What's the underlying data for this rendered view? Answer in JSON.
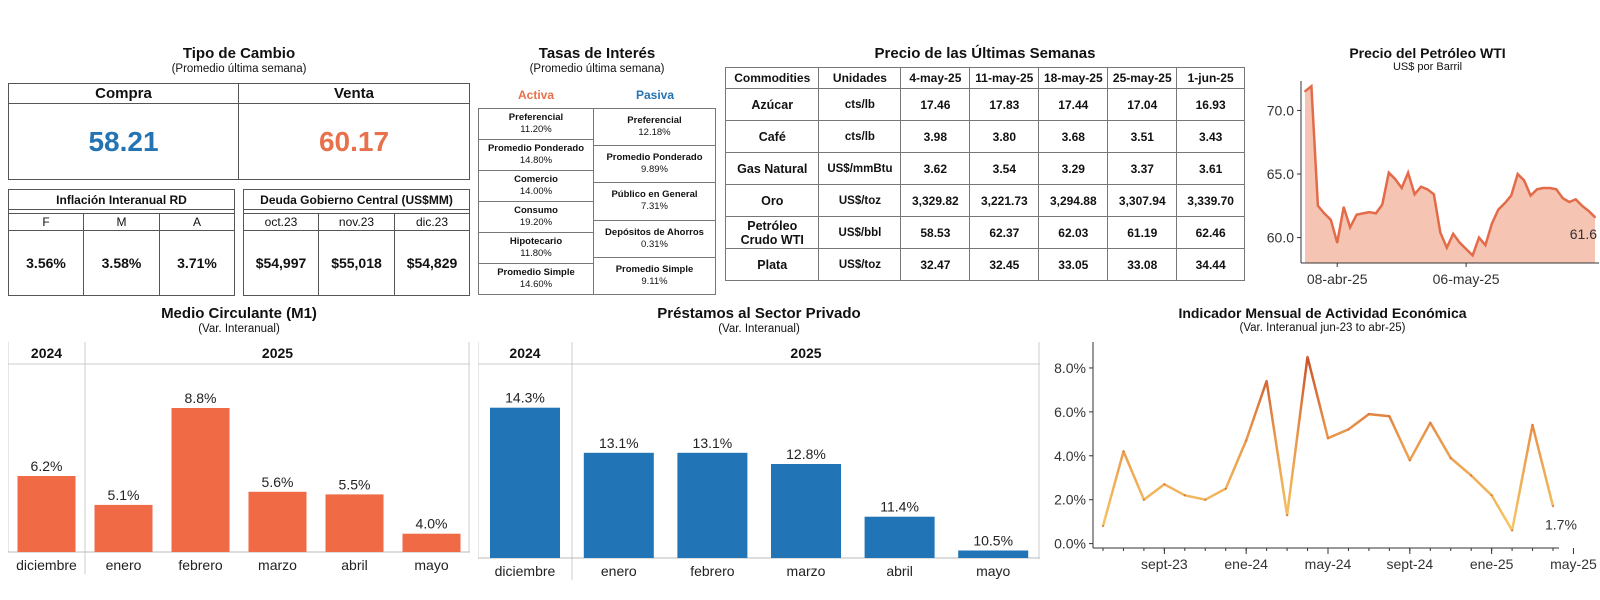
{
  "colors": {
    "blue": "#2474b3",
    "orange": "#e8704a",
    "red_bar": "#ef6a45",
    "blue_bar": "#2174b5",
    "wti_line": "#e36b4a",
    "wti_fill": "#f5c4b3"
  },
  "exchange": {
    "title": "Tipo de Cambio",
    "subtitle": "(Promedio última semana)",
    "buy_label": "Compra",
    "buy_value": "58.21",
    "sell_label": "Venta",
    "sell_value": "60.17"
  },
  "inflation": {
    "title": "Inflación Interanual RD",
    "cols": [
      "F",
      "M",
      "A"
    ],
    "values": [
      "3.56%",
      "3.58%",
      "3.71%"
    ]
  },
  "debt": {
    "title": "Deuda Gobierno Central (US$MM)",
    "cols": [
      "oct.23",
      "nov.23",
      "dic.23"
    ],
    "values": [
      "$54,997",
      "$55,018",
      "$54,829"
    ]
  },
  "rates": {
    "title": "Tasas de Interés",
    "subtitle": "(Promedio última semana)",
    "active_label": "Activa",
    "passive_label": "Pasiva",
    "active": [
      {
        "label": "Preferencial",
        "value": "11.20%"
      },
      {
        "label": "Promedio Ponderado",
        "value": "14.80%"
      },
      {
        "label": "Comercio",
        "value": "14.00%"
      },
      {
        "label": "Consumo",
        "value": "19.20%"
      },
      {
        "label": "Hipotecario",
        "value": "11.80%"
      },
      {
        "label": "Promedio Simple",
        "value": "14.60%"
      }
    ],
    "passive": [
      {
        "label": "Preferencial",
        "value": "12.18%"
      },
      {
        "label": "Promedio Ponderado",
        "value": "9.89%"
      },
      {
        "label": "Público en General",
        "value": "7.31%"
      },
      {
        "label": "Depósitos de Ahorros",
        "value": "0.31%"
      },
      {
        "label": "Promedio Simple",
        "value": "9.11%"
      }
    ]
  },
  "weekly": {
    "title": "Precio de las Últimas Semanas",
    "headers": [
      "Commodities",
      "Unidades",
      "4-may-25",
      "11-may-25",
      "18-may-25",
      "25-may-25",
      "1-jun-25"
    ],
    "rows": [
      {
        "name": "Azúcar",
        "unit": "cts/lb",
        "vals": [
          "17.46",
          "17.83",
          "17.44",
          "17.04",
          "16.93"
        ]
      },
      {
        "name": "Café",
        "unit": "cts/lb",
        "vals": [
          "3.98",
          "3.80",
          "3.68",
          "3.51",
          "3.43"
        ]
      },
      {
        "name": "Gas Natural",
        "unit": "US$/mmBtu",
        "vals": [
          "3.62",
          "3.54",
          "3.29",
          "3.37",
          "3.61"
        ]
      },
      {
        "name": "Oro",
        "unit": "US$/toz",
        "vals": [
          "3,329.82",
          "3,221.73",
          "3,294.88",
          "3,307.94",
          "3,339.70"
        ]
      },
      {
        "name": "Petróleo Crudo WTI",
        "unit": "US$/bbl",
        "vals": [
          "58.53",
          "62.37",
          "62.03",
          "61.19",
          "62.46"
        ]
      },
      {
        "name": "Plata",
        "unit": "US$/toz",
        "vals": [
          "32.47",
          "32.45",
          "33.05",
          "33.08",
          "34.44"
        ]
      }
    ]
  },
  "chart_data": [
    {
      "id": "wti",
      "type": "area",
      "title": "Precio del Petróleo WTI",
      "subtitle": "US$ por Barril",
      "xticks": [
        "08-abr-25",
        "06-may-25"
      ],
      "xtick_index": [
        5,
        25
      ],
      "yticks": [
        "60.0",
        "65.0",
        "70.0"
      ],
      "ylim": [
        58,
        72
      ],
      "values": [
        71.5,
        71.9,
        62.5,
        61.9,
        61.4,
        59.6,
        62.4,
        60.8,
        61.8,
        61.9,
        62.0,
        61.9,
        62.6,
        65.1,
        64.6,
        63.9,
        65.1,
        63.4,
        64.0,
        63.8,
        63.4,
        60.4,
        59.2,
        60.3,
        59.6,
        59.1,
        58.6,
        60.0,
        59.4,
        61.1,
        62.2,
        62.7,
        63.3,
        65.0,
        64.5,
        63.3,
        63.8,
        63.9,
        63.9,
        63.8,
        63.1,
        62.8,
        63.0,
        62.5,
        62.1,
        61.6
      ],
      "last_label": "61.6"
    },
    {
      "id": "m1",
      "type": "bar",
      "title": "Medio Circulante (M1)",
      "subtitle": "(Var. Interanual)",
      "groups": [
        {
          "label": "2024",
          "count": 1
        },
        {
          "label": "2025",
          "count": 5
        }
      ],
      "categories": [
        "diciembre",
        "enero",
        "febrero",
        "marzo",
        "abril",
        "mayo"
      ],
      "values": [
        6.2,
        5.1,
        8.8,
        5.6,
        5.5,
        4.0
      ],
      "labels": [
        "6.2%",
        "5.1%",
        "8.8%",
        "5.6%",
        "5.5%",
        "4.0%"
      ],
      "ylim": [
        3.3,
        9.6
      ]
    },
    {
      "id": "loans",
      "type": "bar",
      "title": "Préstamos al Sector Privado",
      "subtitle": "(Var. Interanual)",
      "groups": [
        {
          "label": "2024",
          "count": 1
        },
        {
          "label": "2025",
          "count": 5
        }
      ],
      "categories": [
        "diciembre",
        "enero",
        "febrero",
        "marzo",
        "abril",
        "mayo"
      ],
      "values": [
        14.3,
        13.1,
        13.1,
        12.8,
        11.4,
        10.5
      ],
      "labels": [
        "14.3%",
        "13.1%",
        "13.1%",
        "12.8%",
        "11.4%",
        "10.5%"
      ],
      "ylim": [
        10.3,
        14.85
      ]
    },
    {
      "id": "imae",
      "type": "line",
      "title": "Indicador Mensual de Actividad Económica",
      "subtitle": "(Var. Interanual jun-23 to abr-25)",
      "x": [
        "jun-23",
        "jul-23",
        "ago-23",
        "sept-23",
        "oct-23",
        "nov-23",
        "dic-23",
        "ene-24",
        "feb-24",
        "mar-24",
        "abr-24",
        "may-24",
        "jun-24",
        "jul-24",
        "ago-24",
        "sept-24",
        "oct-24",
        "nov-24",
        "dic-24",
        "ene-25",
        "feb-25",
        "mar-25",
        "abr-25"
      ],
      "values": [
        0.8,
        4.2,
        2.0,
        2.7,
        2.2,
        2.0,
        2.5,
        4.7,
        7.4,
        1.3,
        8.5,
        4.8,
        5.2,
        5.9,
        5.8,
        3.8,
        5.5,
        3.9,
        3.1,
        2.2,
        0.6,
        5.4,
        1.7
      ],
      "xticks": [
        "sept-23",
        "ene-24",
        "may-24",
        "sept-24",
        "ene-25",
        "may-25"
      ],
      "xtick_index": [
        3,
        7,
        11,
        15,
        19,
        23
      ],
      "yticks": [
        "0.0%",
        "2.0%",
        "4.0%",
        "6.0%",
        "8.0%"
      ],
      "ylim": [
        -0.2,
        9.0
      ],
      "last_label": "1.7%",
      "grid": false
    }
  ]
}
